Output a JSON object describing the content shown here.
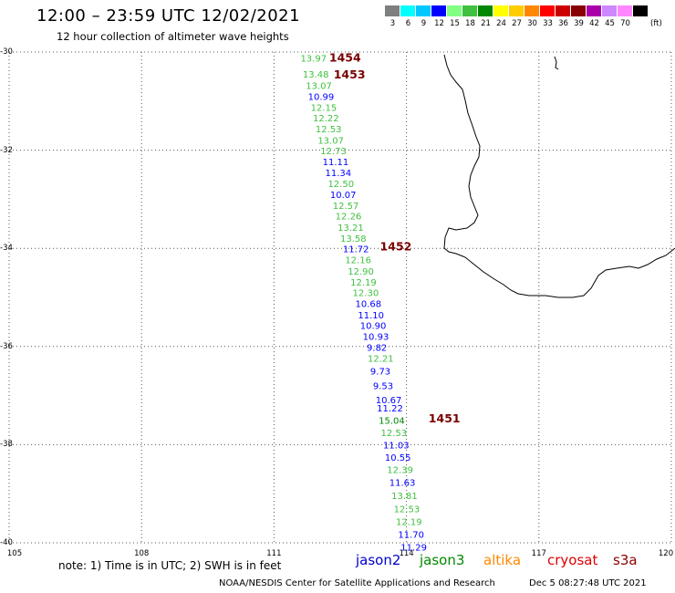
{
  "header": {
    "title": "12:00 – 23:59 UTC 12/02/2021",
    "subtitle": "12 hour collection of altimeter wave heights"
  },
  "legend": {
    "colors": [
      "#7f7f7f",
      "#00ffff",
      "#00c8ff",
      "#0000ff",
      "#80ff80",
      "#40c040",
      "#008800",
      "#ffff00",
      "#ffcc00",
      "#ff8800",
      "#ff0000",
      "#cc0000",
      "#880000",
      "#aa00aa",
      "#cc88ff",
      "#ff88ff",
      "#000000"
    ],
    "labels": [
      "3",
      "6",
      "9",
      "12",
      "15",
      "18",
      "21",
      "24",
      "27",
      "30",
      "33",
      "36",
      "39",
      "42",
      "45",
      "70"
    ],
    "unit": "(ft)"
  },
  "axes": {
    "lat_labels": [
      "-30",
      "-32",
      "-34",
      "-36",
      "-38",
      "-40"
    ],
    "lon_labels": [
      "105",
      "108",
      "111",
      "114",
      "117",
      "120"
    ]
  },
  "passes": [
    {
      "label": "1454",
      "lat": -30.1,
      "lon": 112.25
    },
    {
      "label": "1453",
      "lat": -30.45,
      "lon": 112.35
    },
    {
      "label": "1452",
      "lat": -33.95,
      "lon": 113.4
    },
    {
      "label": "1451",
      "lat": -37.45,
      "lon": 114.5
    }
  ],
  "observations": [
    {
      "v": "13.97",
      "lat": -30.12,
      "lon": 111.6,
      "c": "#40c040"
    },
    {
      "v": "13.48",
      "lat": -30.45,
      "lon": 111.65,
      "c": "#40c040"
    },
    {
      "v": "13.07",
      "lat": -30.68,
      "lon": 111.72,
      "c": "#40c040"
    },
    {
      "v": "10.99",
      "lat": -30.9,
      "lon": 111.77,
      "c": "#0000ff"
    },
    {
      "v": "12.15",
      "lat": -31.12,
      "lon": 111.83,
      "c": "#40c040"
    },
    {
      "v": "12.22",
      "lat": -31.34,
      "lon": 111.88,
      "c": "#40c040"
    },
    {
      "v": "12.53",
      "lat": -31.56,
      "lon": 111.94,
      "c": "#40c040"
    },
    {
      "v": "13.07",
      "lat": -31.79,
      "lon": 111.99,
      "c": "#40c040"
    },
    {
      "v": "12.73",
      "lat": -32.01,
      "lon": 112.05,
      "c": "#40c040"
    },
    {
      "v": "11.11",
      "lat": -32.23,
      "lon": 112.1,
      "c": "#0000ff"
    },
    {
      "v": "11.34",
      "lat": -32.45,
      "lon": 112.16,
      "c": "#0000ff"
    },
    {
      "v": "12.50",
      "lat": -32.68,
      "lon": 112.22,
      "c": "#40c040"
    },
    {
      "v": "10.07",
      "lat": -32.9,
      "lon": 112.27,
      "c": "#0000ff"
    },
    {
      "v": "12.57",
      "lat": -33.12,
      "lon": 112.33,
      "c": "#40c040"
    },
    {
      "v": "12.26",
      "lat": -33.34,
      "lon": 112.39,
      "c": "#40c040"
    },
    {
      "v": "13.21",
      "lat": -33.57,
      "lon": 112.44,
      "c": "#40c040"
    },
    {
      "v": "13.58",
      "lat": -33.79,
      "lon": 112.5,
      "c": "#40c040"
    },
    {
      "v": "11.72",
      "lat": -34.01,
      "lon": 112.56,
      "c": "#0000ff"
    },
    {
      "v": "12.16",
      "lat": -34.23,
      "lon": 112.61,
      "c": "#40c040"
    },
    {
      "v": "12.90",
      "lat": -34.46,
      "lon": 112.67,
      "c": "#40c040"
    },
    {
      "v": "12.19",
      "lat": -34.68,
      "lon": 112.73,
      "c": "#40c040"
    },
    {
      "v": "12.30",
      "lat": -34.9,
      "lon": 112.78,
      "c": "#40c040"
    },
    {
      "v": "10.68",
      "lat": -35.12,
      "lon": 112.84,
      "c": "#0000ff"
    },
    {
      "v": "11.10",
      "lat": -35.35,
      "lon": 112.9,
      "c": "#0000ff"
    },
    {
      "v": "10.90",
      "lat": -35.57,
      "lon": 112.95,
      "c": "#0000ff"
    },
    {
      "v": "10.93",
      "lat": -35.79,
      "lon": 113.01,
      "c": "#0000ff"
    },
    {
      "v": "9.82",
      "lat": -36.01,
      "lon": 113.1,
      "c": "#0000ff"
    },
    {
      "v": "12.21",
      "lat": -36.24,
      "lon": 113.12,
      "c": "#40c040"
    },
    {
      "v": "9.73",
      "lat": -36.5,
      "lon": 113.18,
      "c": "#0000ff"
    },
    {
      "v": "9.53",
      "lat": -36.79,
      "lon": 113.24,
      "c": "#0000ff"
    },
    {
      "v": "10.67",
      "lat": -37.08,
      "lon": 113.3,
      "c": "#0000ff"
    },
    {
      "v": "11.22",
      "lat": -37.25,
      "lon": 113.33,
      "c": "#0000ff"
    },
    {
      "v": "15.04",
      "lat": -37.5,
      "lon": 113.37,
      "c": "#008800"
    },
    {
      "v": "12.53",
      "lat": -37.75,
      "lon": 113.42,
      "c": "#40c040"
    },
    {
      "v": "11.03",
      "lat": -38.0,
      "lon": 113.47,
      "c": "#0000ff"
    },
    {
      "v": "10.55",
      "lat": -38.25,
      "lon": 113.51,
      "c": "#0000ff"
    },
    {
      "v": "12.39",
      "lat": -38.5,
      "lon": 113.56,
      "c": "#40c040"
    },
    {
      "v": "11.63",
      "lat": -38.76,
      "lon": 113.61,
      "c": "#0000ff"
    },
    {
      "v": "13.81",
      "lat": -39.03,
      "lon": 113.66,
      "c": "#40c040"
    },
    {
      "v": "12.53",
      "lat": -39.3,
      "lon": 113.71,
      "c": "#40c040"
    },
    {
      "v": "12.19",
      "lat": -39.56,
      "lon": 113.76,
      "c": "#40c040"
    },
    {
      "v": "11.70",
      "lat": -39.82,
      "lon": 113.81,
      "c": "#0000ff"
    },
    {
      "v": "11.29",
      "lat": -40.08,
      "lon": 113.87,
      "c": "#0000ff"
    }
  ],
  "footer": {
    "note": "note: 1) Time is in UTC; 2) SWH is in feet",
    "satellites": [
      {
        "name": "jason2",
        "color": "#0000cc"
      },
      {
        "name": "jason3",
        "color": "#008800"
      },
      {
        "name": "altika",
        "color": "#ff8800"
      },
      {
        "name": "cryosat",
        "color": "#dd0000"
      },
      {
        "name": "s3a",
        "color": "#880000"
      }
    ],
    "credit": "NOAA/NESDIS Center for Satellite Applications and Research",
    "date": "Dec  5 08:27:48 UTC 2021"
  }
}
